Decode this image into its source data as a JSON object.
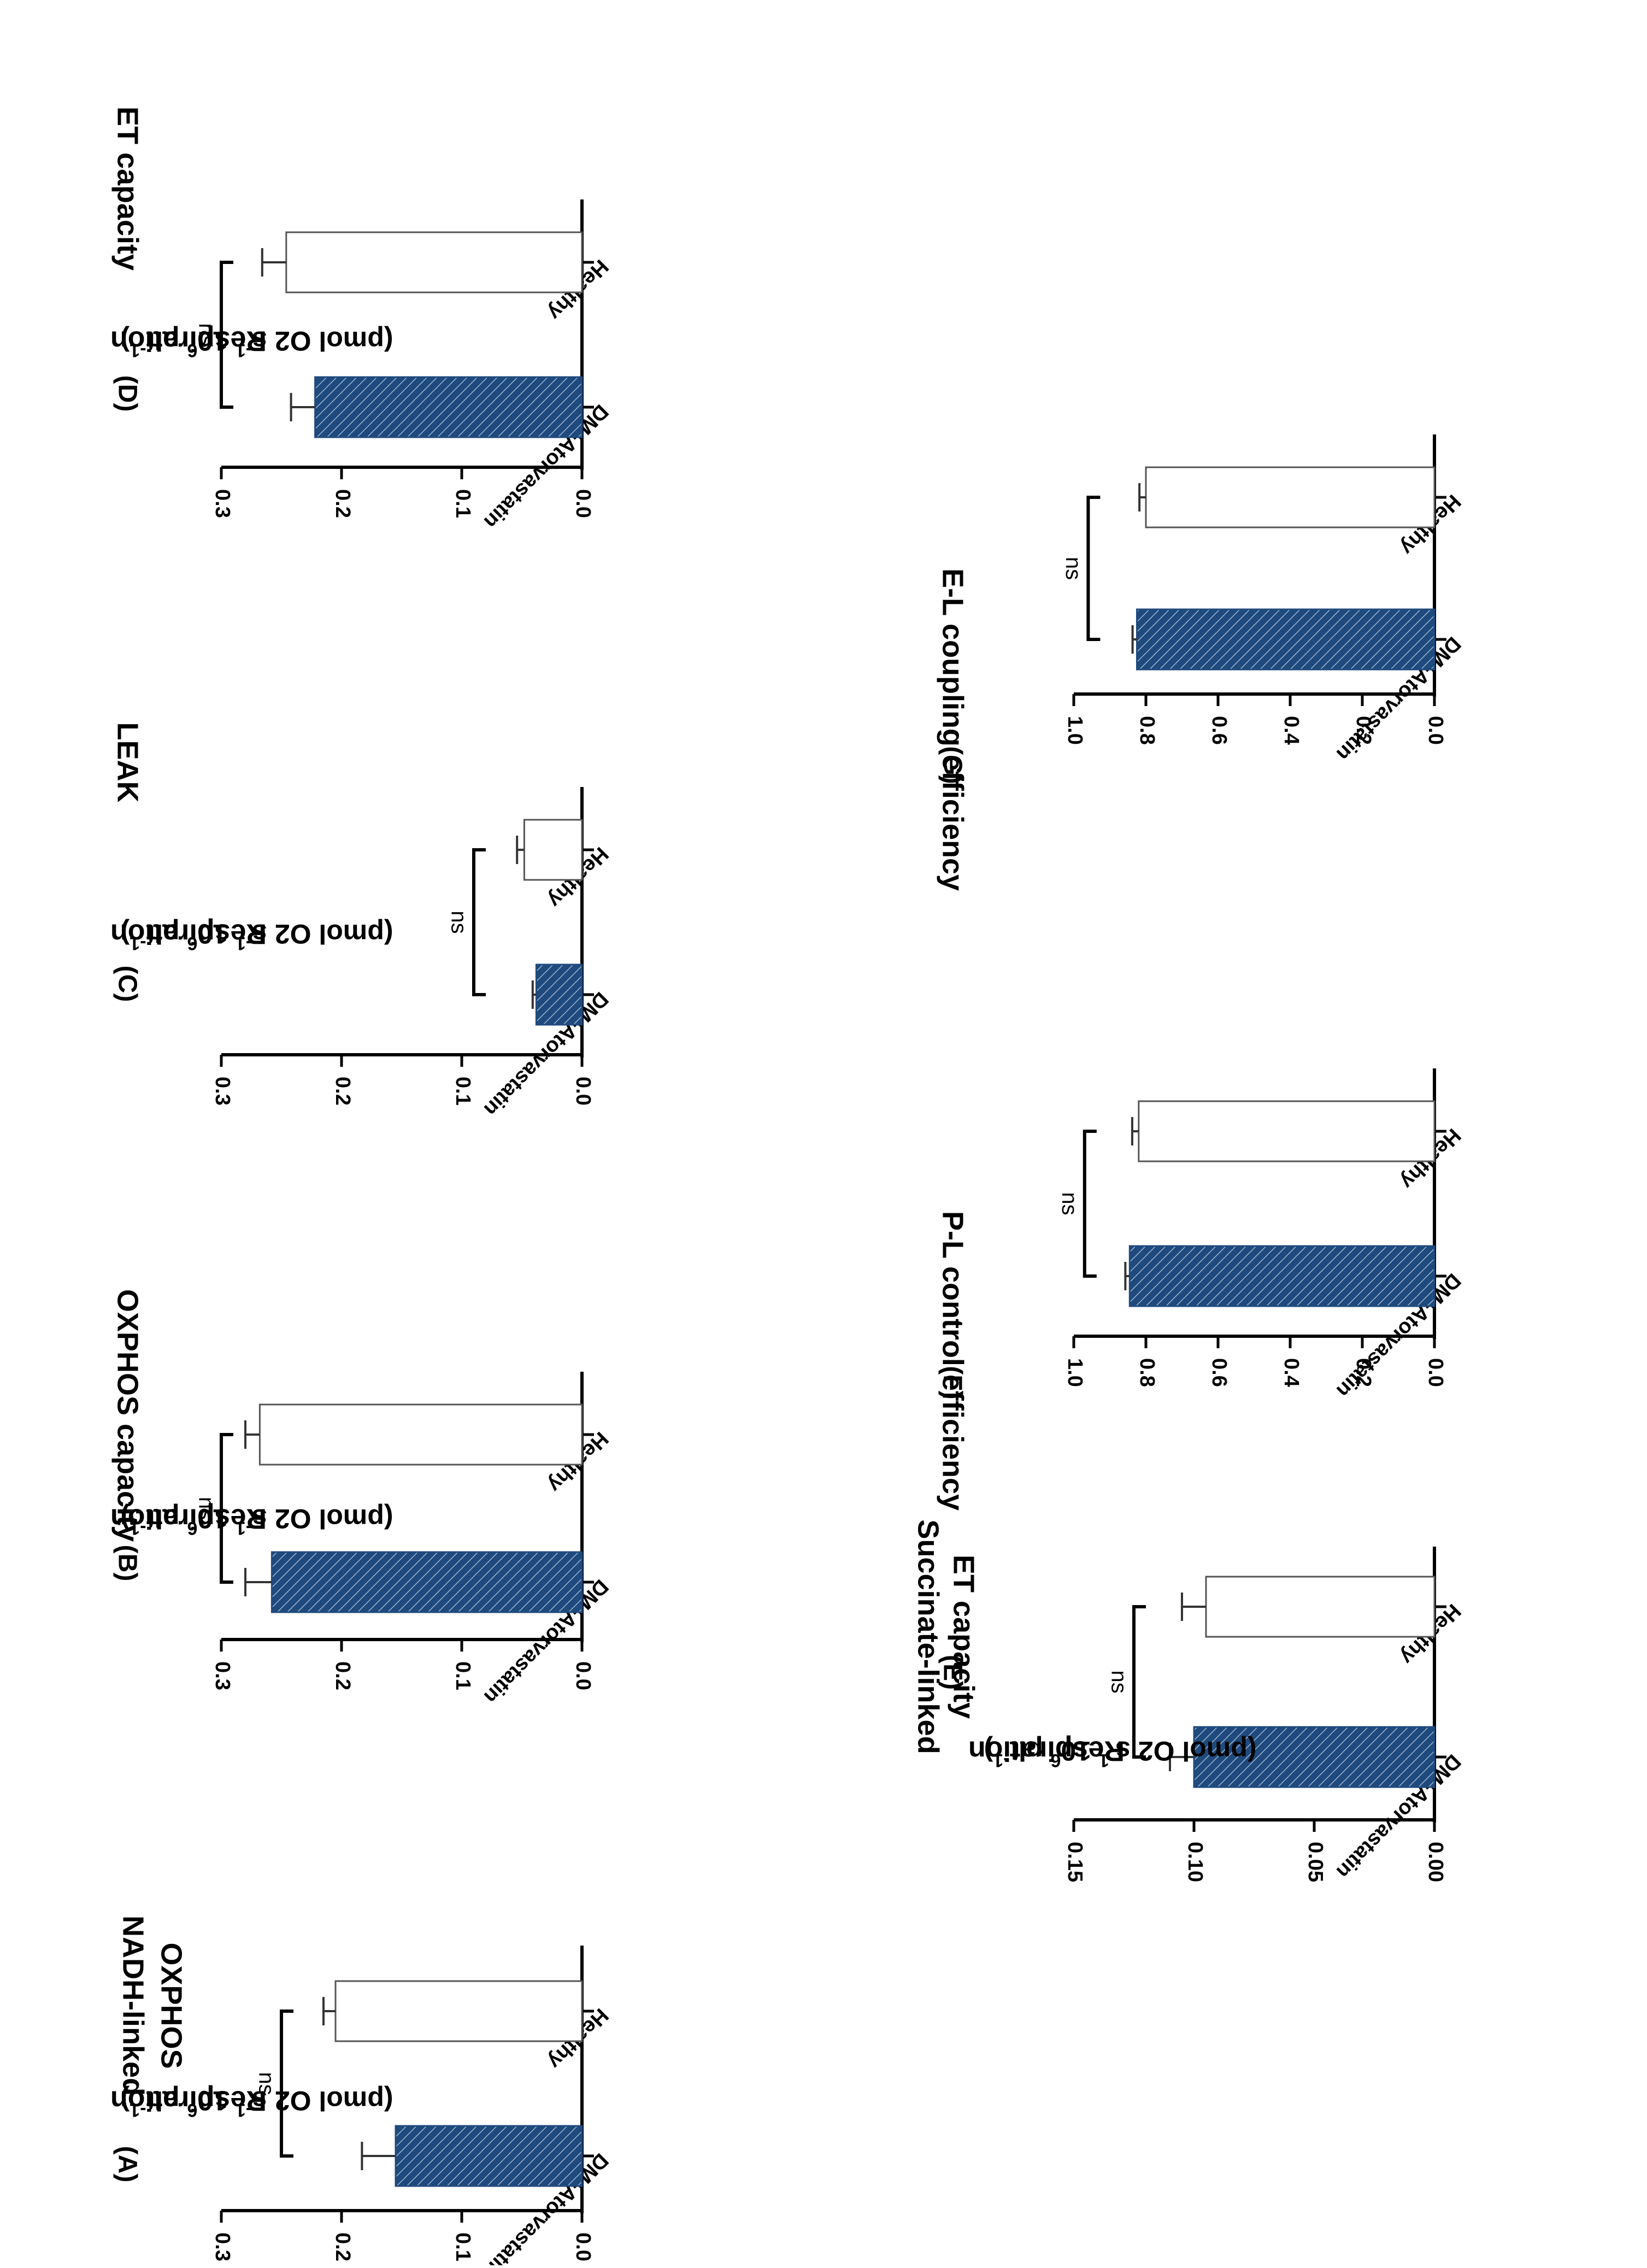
{
  "figure": {
    "colors": {
      "axis": "#000000",
      "healthy_fill": "#ffffff",
      "healthy_stroke": "#555555",
      "treated_fill": "#1f4a7d",
      "hatch_line": "#9db4d1"
    }
  },
  "chart_data": [
    {
      "id": "A",
      "panel_label": "(A)",
      "title_lines": [
        "NADH-linked",
        "OXPHOS"
      ],
      "type": "bar",
      "ylabel_lines": [
        "Respiration",
        "(pmol O2 s",
        "-1",
        " 10",
        "6",
        " plt",
        "-1",
        ")"
      ],
      "ylim": [
        0,
        0.3
      ],
      "ticks": [
        0.0,
        0.1,
        0.2,
        0.3
      ],
      "tick_labels": [
        "0.0",
        "0.1",
        "0.2",
        "0.3"
      ],
      "categories": [
        "Healthy",
        "DM+Atorvastatin"
      ],
      "values": [
        0.205,
        0.155
      ],
      "errors": [
        0.01,
        0.028
      ],
      "significance": "ns",
      "bracket_level": 0.25
    },
    {
      "id": "B",
      "panel_label": "(B)",
      "title_lines": [
        "OXPHOS capacity"
      ],
      "type": "bar",
      "ylabel_lines": [
        "Respiration",
        "(pmol O2 s",
        "-1",
        " 10",
        "6",
        " plt",
        "-1",
        ")"
      ],
      "ylim": [
        0,
        0.3
      ],
      "ticks": [
        0.0,
        0.1,
        0.2,
        0.3
      ],
      "tick_labels": [
        "0.0",
        "0.1",
        "0.2",
        "0.3"
      ],
      "categories": [
        "Healthy",
        "DM+Atorvastatin"
      ],
      "values": [
        0.268,
        0.258
      ],
      "errors": [
        0.012,
        0.022
      ],
      "significance": "ns",
      "bracket_level": 0.3
    },
    {
      "id": "C",
      "panel_label": "(C)",
      "title_lines": [
        "LEAK"
      ],
      "type": "bar",
      "ylabel_lines": [
        "Respiration",
        "(pmol O2 s",
        "-1",
        " 10",
        "6",
        " plt",
        "-1",
        ")"
      ],
      "ylim": [
        0,
        0.3
      ],
      "ticks": [
        0.0,
        0.1,
        0.2,
        0.3
      ],
      "tick_labels": [
        "0.0",
        "0.1",
        "0.2",
        "0.3"
      ],
      "categories": [
        "Healthy",
        "DM+Atorvastatin"
      ],
      "values": [
        0.048,
        0.038
      ],
      "errors": [
        0.006,
        0.003
      ],
      "significance": "ns",
      "bracket_level": 0.09
    },
    {
      "id": "D",
      "panel_label": "(D)",
      "title_lines": [
        "ET capacity"
      ],
      "type": "bar",
      "ylabel_lines": [
        "Respiration",
        "(pmol O2 s",
        "-1",
        " 10",
        "6",
        " plt",
        "-1",
        ")"
      ],
      "ylim": [
        0,
        0.3
      ],
      "ticks": [
        0.0,
        0.1,
        0.2,
        0.3
      ],
      "tick_labels": [
        "0.0",
        "0.1",
        "0.2",
        "0.3"
      ],
      "categories": [
        "Healthy",
        "DM+Atorvastatin"
      ],
      "values": [
        0.246,
        0.222
      ],
      "errors": [
        0.02,
        0.02
      ],
      "significance": "ns",
      "bracket_level": 0.3
    },
    {
      "id": "E",
      "panel_label": "(E)",
      "title_lines": [
        "Succinate-linked",
        "ET capacity"
      ],
      "type": "bar",
      "ylabel_lines": [
        "Respiration",
        "(pmol O2 s",
        "-1",
        " 10",
        "6",
        " plt",
        "-1",
        ")"
      ],
      "ylim": [
        0,
        0.15
      ],
      "ticks": [
        0.0,
        0.05,
        0.1,
        0.15
      ],
      "tick_labels": [
        "0.00",
        "0.05",
        "0.10",
        "0.15"
      ],
      "categories": [
        "Healthy",
        "DM+Atorvastatin"
      ],
      "values": [
        0.095,
        0.1
      ],
      "errors": [
        0.01,
        0.01
      ],
      "significance": "ns",
      "bracket_level": 0.125
    },
    {
      "id": "F",
      "panel_label": "(F)",
      "title_lines": [
        "P-L control efficiency"
      ],
      "type": "bar",
      "ylabel_lines": [],
      "ylim": [
        0,
        1.0
      ],
      "ticks": [
        0.0,
        0.2,
        0.4,
        0.6,
        0.8,
        1.0
      ],
      "tick_labels": [
        "0.0",
        "0.2",
        "0.4",
        "0.6",
        "0.8",
        "1.0"
      ],
      "categories": [
        "Healthy",
        "DM+Atorvastatin"
      ],
      "values": [
        0.82,
        0.845
      ],
      "errors": [
        0.018,
        0.012
      ],
      "significance": "ns",
      "bracket_level": 0.97
    },
    {
      "id": "G",
      "panel_label": "(G)",
      "title_lines": [
        "E-L coupling efficiency"
      ],
      "type": "bar",
      "ylabel_lines": [],
      "ylim": [
        0,
        1.0
      ],
      "ticks": [
        0.0,
        0.2,
        0.4,
        0.6,
        0.8,
        1.0
      ],
      "tick_labels": [
        "0.0",
        "0.2",
        "0.4",
        "0.6",
        "0.8",
        "1.0"
      ],
      "categories": [
        "Healthy",
        "DM+Atorvastatin"
      ],
      "values": [
        0.8,
        0.825
      ],
      "errors": [
        0.018,
        0.012
      ],
      "significance": "ns",
      "bracket_level": 0.96
    }
  ]
}
